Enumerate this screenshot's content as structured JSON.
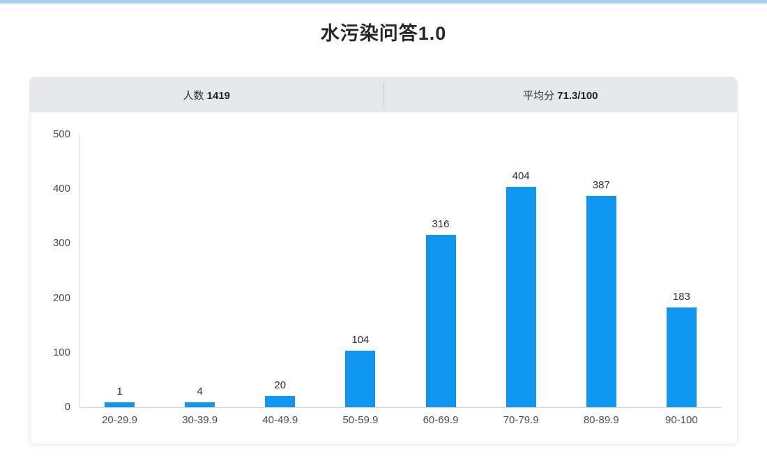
{
  "page": {
    "title": "水污染问答1.0",
    "top_strip_color": "#a4d2ee"
  },
  "stats": {
    "count_label": "人数",
    "count_value": "1419",
    "avg_label": "平均分",
    "avg_value": "71.3/100"
  },
  "chart_data": {
    "type": "bar",
    "categories": [
      "20-29.9",
      "30-39.9",
      "40-49.9",
      "50-59.9",
      "60-69.9",
      "70-79.9",
      "80-89.9",
      "90-100"
    ],
    "values": [
      1,
      4,
      20,
      104,
      316,
      404,
      387,
      183
    ],
    "title": "水污染问答1.0",
    "xlabel": "",
    "ylabel": "",
    "ylim": [
      0,
      500
    ],
    "yticks": [
      0,
      100,
      200,
      300,
      400,
      500
    ],
    "bar_color": "#0e96f0",
    "grid": false,
    "legend": "none",
    "data_labels": true
  }
}
